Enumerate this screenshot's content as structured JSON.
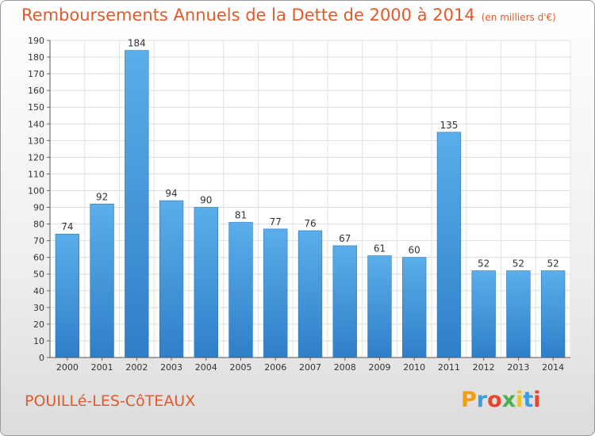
{
  "header": {
    "title": "Remboursements Annuels de la Dette de 2000 à 2014",
    "unit": "(en milliers d'€)"
  },
  "footer": {
    "commune": "POUILLé-LES-CôTEAUX",
    "brand_letters": [
      "P",
      "r",
      "o",
      "x",
      "i",
      "t",
      "i"
    ],
    "brand_colors": [
      "#f39c12",
      "#3a9de0",
      "#e8452c",
      "#4caf50",
      "#f0c419",
      "#3a9de0",
      "#e8452c"
    ]
  },
  "chart_data": {
    "type": "bar",
    "title": "Remboursements Annuels de la Dette de 2000 à 2014",
    "ylabel": "(en milliers d'€)",
    "categories": [
      "2000",
      "2001",
      "2002",
      "2003",
      "2004",
      "2005",
      "2006",
      "2007",
      "2008",
      "2009",
      "2010",
      "2011",
      "2012",
      "2013",
      "2014"
    ],
    "values": [
      74,
      92,
      184,
      94,
      90,
      81,
      77,
      76,
      67,
      61,
      60,
      135,
      52,
      52,
      52
    ],
    "data_labels": [
      "74",
      "92",
      "184",
      "94",
      "90",
      "81",
      "77",
      "76",
      "67",
      "61",
      "60",
      "135",
      "52",
      "52",
      "52"
    ],
    "ylim": [
      0,
      190
    ],
    "yticks": [
      "0",
      "10",
      "20",
      "30",
      "40",
      "50",
      "60",
      "70",
      "80",
      "90",
      "100",
      "110",
      "120",
      "130",
      "140",
      "150",
      "160",
      "170",
      "180",
      "190"
    ],
    "grid": true,
    "bar_color": "#4a9fe3"
  }
}
